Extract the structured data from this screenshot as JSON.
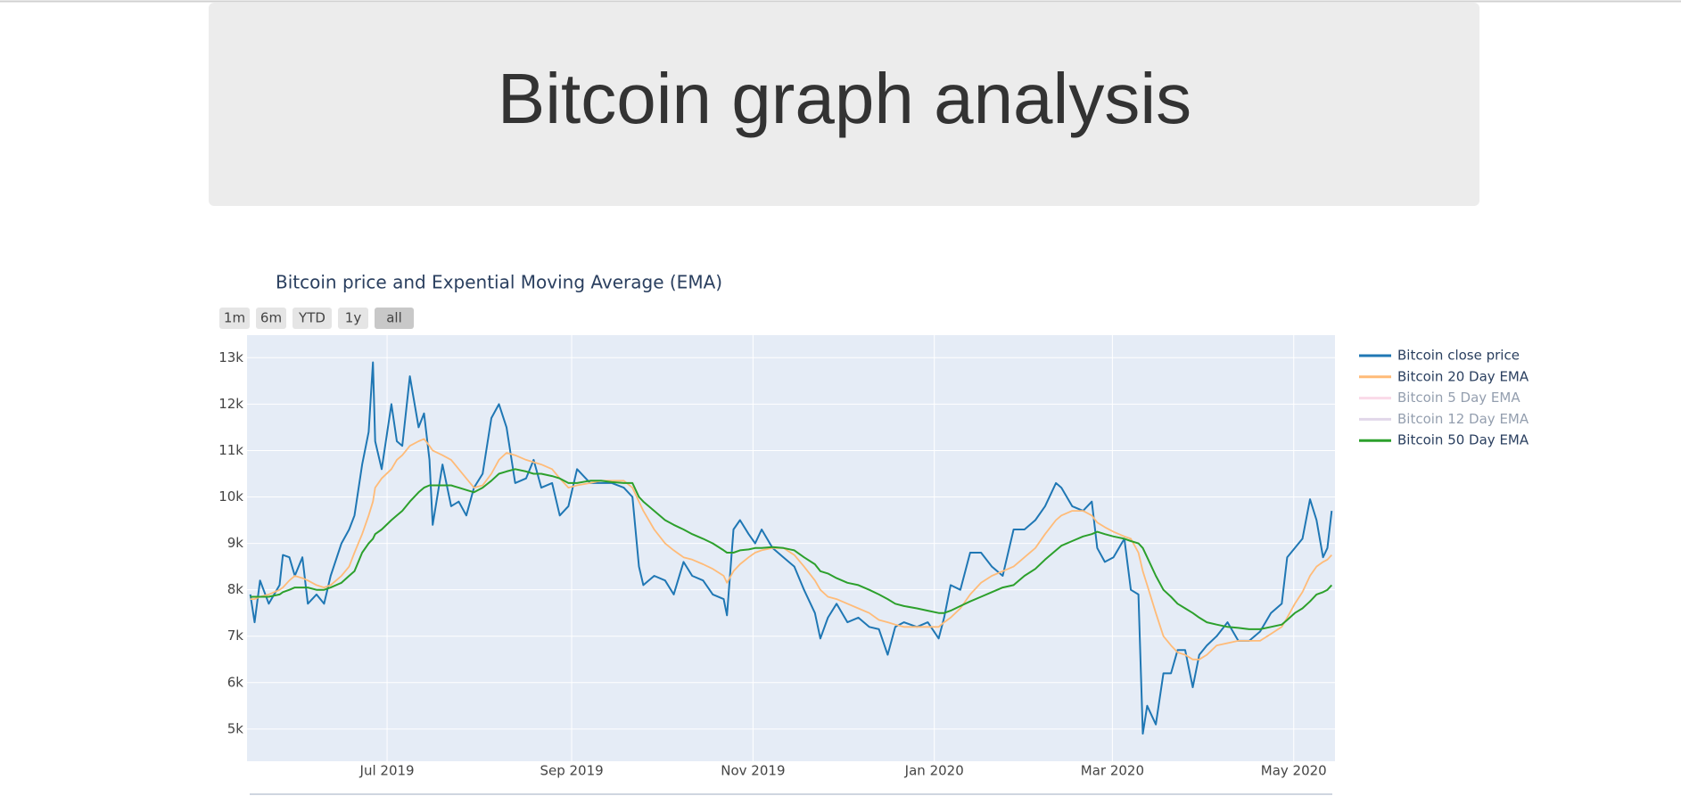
{
  "header": {
    "title": "Bitcoin graph analysis"
  },
  "chart_data": {
    "type": "line",
    "title": "Bitcoin price and Expential Moving Average (EMA)",
    "range_buttons": [
      "1m",
      "6m",
      "YTD",
      "1y",
      "all"
    ],
    "active_button": 4,
    "grid": true,
    "legend": "right",
    "x": [
      2019.37,
      2019.374,
      2019.379,
      2019.387,
      2019.397,
      2019.4,
      2019.406,
      2019.411,
      2019.418,
      2019.423,
      2019.431,
      2019.438,
      2019.444,
      2019.454,
      2019.461,
      2019.466,
      2019.473,
      2019.479,
      2019.483,
      2019.485,
      2019.491,
      2019.5,
      2019.505,
      2019.51,
      2019.517,
      2019.525,
      2019.53,
      2019.535,
      2019.538,
      2019.547,
      2019.555,
      2019.562,
      2019.569,
      2019.576,
      2019.584,
      2019.592,
      2019.599,
      2019.606,
      2019.614,
      2019.624,
      2019.631,
      2019.638,
      2019.648,
      2019.655,
      2019.663,
      2019.671,
      2019.683,
      2019.693,
      2019.703,
      2019.714,
      2019.722,
      2019.728,
      2019.732,
      2019.742,
      2019.752,
      2019.76,
      2019.769,
      2019.777,
      2019.787,
      2019.796,
      2019.806,
      2019.809,
      2019.815,
      2019.821,
      2019.829,
      2019.835,
      2019.841,
      2019.851,
      2019.861,
      2019.871,
      2019.88,
      2019.89,
      2019.895,
      2019.902,
      2019.91,
      2019.92,
      2019.93,
      2019.94,
      2019.949,
      2019.957,
      2019.964,
      2019.972,
      2019.984,
      2019.994,
      2020.004,
      2020.009,
      2020.015,
      2020.024,
      2020.033,
      2020.043,
      2020.053,
      2020.063,
      2020.073,
      2020.083,
      2020.093,
      2020.102,
      2020.112,
      2020.117,
      2020.127,
      2020.137,
      2020.145,
      2020.15,
      2020.157,
      2020.165,
      2020.175,
      2020.181,
      2020.188,
      2020.192,
      2020.196,
      2020.204,
      2020.211,
      2020.218,
      2020.224,
      2020.231,
      2020.238,
      2020.244,
      2020.251,
      2020.26,
      2020.27,
      2020.28,
      2020.29,
      2020.3,
      2020.31,
      2020.32,
      2020.325,
      2020.332,
      2020.339,
      2020.346,
      2020.352,
      2020.358,
      2020.362,
      2020.366
    ],
    "xlim": [
      2019.367,
      2020.369
    ],
    "xticks": [
      {
        "value": 2019.496,
        "label": "Jul 2019"
      },
      {
        "value": 2019.666,
        "label": "Sep 2019"
      },
      {
        "value": 2019.833,
        "label": "Nov 2019"
      },
      {
        "value": 2020.0,
        "label": "Jan 2020"
      },
      {
        "value": 2020.164,
        "label": "Mar 2020"
      },
      {
        "value": 2020.331,
        "label": "May 2020"
      }
    ],
    "ylim": [
      4306,
      13486
    ],
    "yticks": [
      {
        "value": 5000,
        "label": "5k"
      },
      {
        "value": 6000,
        "label": "6k"
      },
      {
        "value": 7000,
        "label": "7k"
      },
      {
        "value": 8000,
        "label": "8k"
      },
      {
        "value": 9000,
        "label": "9k"
      },
      {
        "value": 10000,
        "label": "10k"
      },
      {
        "value": 11000,
        "label": "11k"
      },
      {
        "value": 12000,
        "label": "12k"
      },
      {
        "value": 13000,
        "label": "13k"
      }
    ],
    "series": [
      {
        "name": "Bitcoin close price",
        "color": "#1f77b4",
        "width": 2,
        "values": [
          7900,
          7300,
          8200,
          7700,
          8100,
          8750,
          8700,
          8300,
          8700,
          7700,
          7900,
          7700,
          8300,
          9000,
          9300,
          9600,
          10700,
          11400,
          12900,
          11200,
          10600,
          12000,
          11200,
          11100,
          12600,
          11500,
          11800,
          10800,
          9400,
          10700,
          9800,
          9900,
          9600,
          10200,
          10500,
          11700,
          12000,
          11500,
          10300,
          10400,
          10800,
          10200,
          10300,
          9600,
          9800,
          10600,
          10300,
          10300,
          10300,
          10200,
          10000,
          8500,
          8100,
          8300,
          8200,
          7900,
          8600,
          8300,
          8200,
          7900,
          7800,
          7450,
          9300,
          9500,
          9200,
          9000,
          9300,
          8900,
          8700,
          8500,
          8000,
          7500,
          6950,
          7400,
          7700,
          7300,
          7400,
          7200,
          7150,
          6600,
          7200,
          7300,
          7200,
          7300,
          6950,
          7400,
          8100,
          8000,
          8800,
          8800,
          8500,
          8300,
          9300,
          9300,
          9500,
          9800,
          10300,
          10200,
          9800,
          9700,
          9900,
          8900,
          8600,
          8700,
          9100,
          8000,
          7900,
          4900,
          5500,
          5100,
          6200,
          6200,
          6700,
          6700,
          5900,
          6600,
          6800,
          7000,
          7300,
          6900,
          6900,
          7100,
          7500,
          7700,
          8700,
          8900,
          9100,
          9950,
          9500,
          8700,
          8900,
          9700
        ]
      },
      {
        "name": "Bitcoin 20 Day EMA",
        "color": "#ffbb78",
        "width": 1.8,
        "values": [
          7800,
          7800,
          7850,
          7900,
          8000,
          8050,
          8200,
          8300,
          8250,
          8200,
          8100,
          8050,
          8100,
          8300,
          8500,
          8800,
          9200,
          9600,
          9900,
          10200,
          10400,
          10600,
          10800,
          10900,
          11100,
          11200,
          11250,
          11100,
          11000,
          10900,
          10800,
          10600,
          10400,
          10200,
          10250,
          10500,
          10800,
          10950,
          10900,
          10800,
          10750,
          10700,
          10600,
          10400,
          10200,
          10250,
          10300,
          10350,
          10350,
          10350,
          10200,
          9900,
          9700,
          9300,
          9000,
          8850,
          8700,
          8650,
          8550,
          8450,
          8300,
          8150,
          8400,
          8550,
          8700,
          8800,
          8850,
          8900,
          8900,
          8750,
          8500,
          8200,
          8000,
          7850,
          7800,
          7700,
          7600,
          7500,
          7350,
          7300,
          7250,
          7200,
          7200,
          7200,
          7200,
          7300,
          7400,
          7600,
          7900,
          8150,
          8300,
          8400,
          8500,
          8700,
          8900,
          9200,
          9500,
          9600,
          9700,
          9700,
          9600,
          9450,
          9350,
          9250,
          9150,
          9100,
          8800,
          8400,
          8100,
          7500,
          7000,
          6800,
          6650,
          6600,
          6500,
          6500,
          6600,
          6800,
          6850,
          6900,
          6900,
          6900,
          7050,
          7200,
          7400,
          7700,
          7950,
          8300,
          8500,
          8600,
          8650,
          8750
        ]
      },
      {
        "name": "Bitcoin 5 Day EMA",
        "color": "#f7b6d2",
        "visible": "legendonly"
      },
      {
        "name": "Bitcoin 12 Day EMA",
        "color": "#c5b0d5",
        "visible": "legendonly"
      },
      {
        "name": "Bitcoin 50 Day EMA",
        "color": "#2ca02c",
        "width": 2,
        "values": [
          7850,
          7850,
          7850,
          7850,
          7900,
          7950,
          8000,
          8050,
          8050,
          8050,
          8000,
          8000,
          8050,
          8150,
          8300,
          8400,
          8800,
          9000,
          9100,
          9200,
          9300,
          9500,
          9600,
          9700,
          9900,
          10100,
          10200,
          10250,
          10250,
          10250,
          10250,
          10200,
          10150,
          10100,
          10200,
          10350,
          10500,
          10550,
          10600,
          10550,
          10500,
          10500,
          10450,
          10400,
          10300,
          10300,
          10350,
          10350,
          10320,
          10300,
          10300,
          10000,
          9900,
          9700,
          9500,
          9400,
          9300,
          9200,
          9100,
          9000,
          8850,
          8800,
          8800,
          8850,
          8870,
          8900,
          8900,
          8920,
          8900,
          8850,
          8700,
          8550,
          8400,
          8350,
          8250,
          8150,
          8100,
          8000,
          7900,
          7800,
          7700,
          7650,
          7600,
          7550,
          7500,
          7500,
          7550,
          7650,
          7750,
          7850,
          7950,
          8050,
          8100,
          8300,
          8450,
          8650,
          8850,
          8950,
          9050,
          9150,
          9200,
          9250,
          9200,
          9150,
          9100,
          9050,
          9000,
          8900,
          8700,
          8300,
          8000,
          7850,
          7700,
          7600,
          7500,
          7400,
          7300,
          7250,
          7200,
          7180,
          7150,
          7150,
          7200,
          7250,
          7350,
          7500,
          7600,
          7750,
          7900,
          7950,
          8000,
          8100
        ]
      }
    ]
  }
}
